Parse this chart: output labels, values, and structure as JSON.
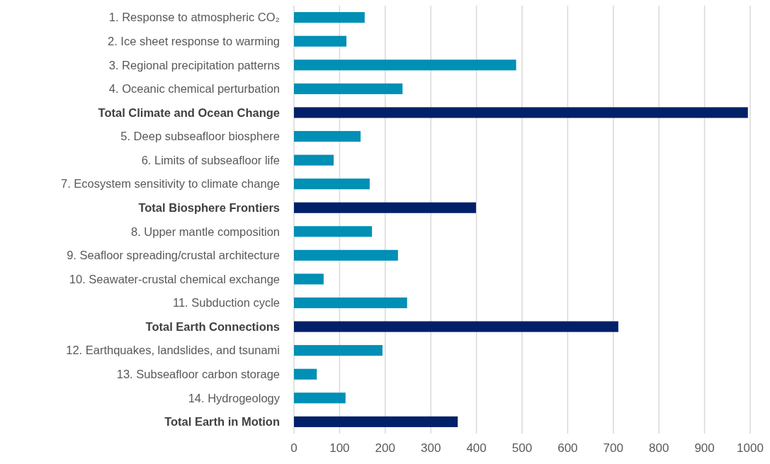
{
  "chart_data": {
    "type": "bar",
    "orientation": "horizontal",
    "categories": [
      "1. Response to atmospheric CO₂",
      "2. Ice sheet response to warming",
      "3. Regional precipitation patterns",
      "4. Oceanic chemical perturbation",
      "Total Climate and Ocean Change",
      "5. Deep subseafloor biosphere",
      "6. Limits of subseafloor life",
      "7. Ecosystem sensitivity to climate change",
      "Total Biosphere Frontiers",
      "8. Upper mantle composition ",
      "9. Seafloor spreading/crustal architecture",
      "10. Seawater-crustal chemical exchange",
      "11. Subduction cycle",
      "Total Earth Connections",
      "12. Earthquakes, landslides, and tsunami",
      "13. Subseafloor carbon storage",
      "14. Hydrogeology",
      "Total Earth in Motion"
    ],
    "values": [
      155,
      115,
      487,
      238,
      995,
      146,
      87,
      166,
      399,
      171,
      228,
      65,
      248,
      711,
      194,
      50,
      113,
      359
    ],
    "colors": [
      "#008fb5",
      "#008fb5",
      "#008fb5",
      "#008fb5",
      "#002169",
      "#008fb5",
      "#008fb5",
      "#008fb5",
      "#002169",
      "#008fb5",
      "#008fb5",
      "#008fb5",
      "#008fb5",
      "#002169",
      "#008fb5",
      "#008fb5",
      "#008fb5",
      "#002169"
    ],
    "xlim": [
      0,
      1000
    ],
    "xticks": [
      0,
      100,
      200,
      300,
      400,
      500,
      600,
      700,
      800,
      900,
      1000
    ],
    "grid": "x"
  }
}
